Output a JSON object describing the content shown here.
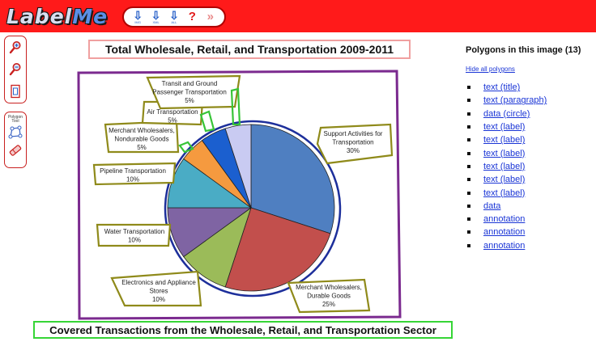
{
  "header": {
    "logo_text_a": "Label",
    "logo_text_b": "Me",
    "tools": [
      {
        "name": "download-xml-button",
        "kind": "arrow",
        "caption": "IMG"
      },
      {
        "name": "download-annotations-button",
        "kind": "arrow",
        "caption": "XML"
      },
      {
        "name": "download-all-button",
        "kind": "arrow",
        "caption": "ALL"
      },
      {
        "name": "help-button",
        "kind": "help",
        "caption": "?"
      },
      {
        "name": "next-image-button",
        "kind": "next",
        "caption": "»"
      }
    ]
  },
  "sidebar": {
    "polygon_tool_label": "Polygon Tool"
  },
  "image": {
    "title": "Total Wholesale, Retail, and Transportation 2009-2011",
    "footer": "Covered Transactions from the Wholesale, Retail, and Transportation Sector",
    "chart_data": {
      "type": "pie",
      "title": "Total Wholesale, Retail, and Transportation 2009-2011",
      "slices": [
        {
          "label": "Support Activities for Transportation",
          "value": 30,
          "color": "#4f7fc1"
        },
        {
          "label": "Merchant Wholesalers, Durable Goods",
          "value": 25,
          "color": "#c24f4c"
        },
        {
          "label": "Electronics and Appliance Stores",
          "value": 10,
          "color": "#9bbb59"
        },
        {
          "label": "Water Transportation",
          "value": 10,
          "color": "#7f64a3"
        },
        {
          "label": "Pipeline Transportation",
          "value": 10,
          "color": "#4aacc5"
        },
        {
          "label": "Merchant Wholesalers, Nondurable Goods",
          "value": 5,
          "color": "#f59a3f"
        },
        {
          "label": "Air Transportation",
          "value": 5,
          "color": "#1b5fcf"
        },
        {
          "label": "Transit and Ground Passenger Transportation",
          "value": 5,
          "color": "#c9cbf2"
        }
      ]
    },
    "labels": [
      {
        "id": "support",
        "lines": [
          "Support Activities for",
          "Transportation",
          "30%"
        ]
      },
      {
        "id": "durable",
        "lines": [
          "Merchant Wholesalers,",
          "Durable Goods",
          "25%"
        ]
      },
      {
        "id": "electronics",
        "lines": [
          "Electronics and Appliance",
          "Stores",
          "10%"
        ]
      },
      {
        "id": "water",
        "lines": [
          "Water Transportation",
          "10%"
        ]
      },
      {
        "id": "pipeline",
        "lines": [
          "Pipeline Transportation",
          "10%"
        ]
      },
      {
        "id": "nondurable",
        "lines": [
          "Merchant Wholesalers,",
          "Nondurable Goods",
          "5%"
        ]
      },
      {
        "id": "air",
        "lines": [
          "Air Transportation",
          "5%"
        ]
      },
      {
        "id": "transit",
        "lines": [
          "Transit and Ground",
          "Passenger Transportation",
          "5%"
        ]
      }
    ],
    "colors": {
      "title_box": "#f0a0a0",
      "footer_box": "#36d536",
      "frame": "#7b2a8f",
      "pie_outline": "#1d2f9b",
      "label_box": "#8f8a1a",
      "annotation": "#37c437"
    }
  },
  "panel": {
    "title": "Polygons in this image (13)",
    "hide_link": "Hide all polygons",
    "items": [
      "text (title)",
      "text (paragraph)",
      "data (circle)",
      "text (label)",
      "text (label)",
      "text (label)",
      "text (label)",
      "text (label)",
      "text (label)",
      "data",
      "annotation",
      "annotation",
      "annotation"
    ]
  }
}
